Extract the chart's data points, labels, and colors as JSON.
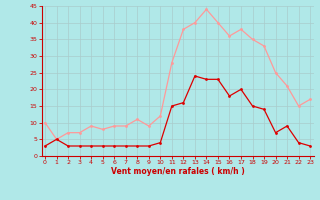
{
  "hours": [
    0,
    1,
    2,
    3,
    4,
    5,
    6,
    7,
    8,
    9,
    10,
    11,
    12,
    13,
    14,
    15,
    16,
    17,
    18,
    19,
    20,
    21,
    22,
    23
  ],
  "wind_avg": [
    3,
    5,
    3,
    3,
    3,
    3,
    3,
    3,
    3,
    3,
    4,
    15,
    16,
    24,
    23,
    23,
    18,
    20,
    15,
    14,
    7,
    9,
    4,
    3
  ],
  "wind_gust": [
    10,
    5,
    7,
    7,
    9,
    8,
    9,
    9,
    11,
    9,
    12,
    28,
    38,
    40,
    44,
    40,
    36,
    38,
    35,
    33,
    25,
    21,
    15,
    17
  ],
  "wind_avg_color": "#dd0000",
  "wind_gust_color": "#ff9999",
  "bg_color": "#b0e8e8",
  "grid_color": "#aacccc",
  "axis_color": "#cc0000",
  "text_color": "#cc0000",
  "xlabel": "Vent moyen/en rafales ( km/h )",
  "ylim": [
    0,
    45
  ],
  "yticks": [
    0,
    5,
    10,
    15,
    20,
    25,
    30,
    35,
    40,
    45
  ],
  "xticks": [
    0,
    1,
    2,
    3,
    4,
    5,
    6,
    7,
    8,
    9,
    10,
    11,
    12,
    13,
    14,
    15,
    16,
    17,
    18,
    19,
    20,
    21,
    22,
    23
  ]
}
